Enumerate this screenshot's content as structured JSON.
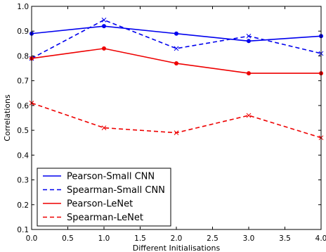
{
  "chart_data": {
    "type": "line",
    "xlabel": "Different Initialisations",
    "ylabel": "Correlations",
    "xlim": [
      0.0,
      4.0
    ],
    "ylim": [
      0.1,
      1.0
    ],
    "xticks": [
      0.0,
      0.5,
      1.0,
      1.5,
      2.0,
      2.5,
      3.0,
      3.5,
      4.0
    ],
    "xtick_labels": [
      "0.0",
      "0.5",
      "1.0",
      "1.5",
      "2.0",
      "2.5",
      "3.0",
      "3.5",
      "4.0"
    ],
    "yticks": [
      0.1,
      0.2,
      0.3,
      0.4,
      0.5,
      0.6,
      0.7,
      0.8,
      0.9,
      1.0
    ],
    "ytick_labels": [
      "0.1",
      "0.2",
      "0.3",
      "0.4",
      "0.5",
      "0.6",
      "0.7",
      "0.8",
      "0.9",
      "1.0"
    ],
    "grid": false,
    "legend_position": "lower-left",
    "x": [
      0,
      1,
      2,
      3,
      4
    ],
    "series": [
      {
        "name": "Pearson-Small CNN",
        "values": [
          0.89,
          0.92,
          0.89,
          0.86,
          0.88
        ],
        "color": "#0000ee",
        "dash": "solid",
        "marker": "dot"
      },
      {
        "name": "Spearman-Small CNN",
        "values": [
          0.79,
          0.945,
          0.83,
          0.88,
          0.81
        ],
        "color": "#0000ee",
        "dash": "dashed",
        "marker": "x"
      },
      {
        "name": "Pearson-LeNet",
        "values": [
          0.79,
          0.83,
          0.77,
          0.73,
          0.73
        ],
        "color": "#ee0000",
        "dash": "solid",
        "marker": "dot"
      },
      {
        "name": "Spearman-LeNet",
        "values": [
          0.61,
          0.51,
          0.49,
          0.56,
          0.47
        ],
        "color": "#ee0000",
        "dash": "dashed",
        "marker": "x"
      }
    ]
  }
}
